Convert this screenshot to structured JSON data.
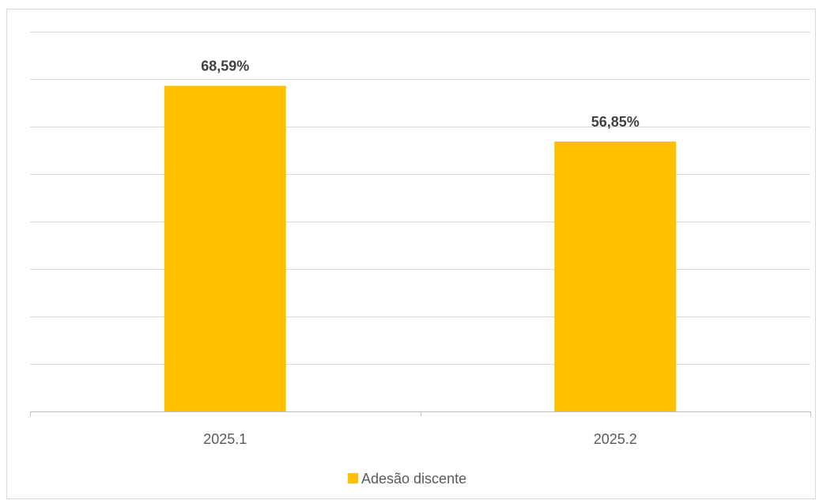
{
  "chart_data": {
    "type": "bar",
    "categories": [
      "2025.1",
      "2025.2"
    ],
    "series": [
      {
        "name": "Adesão discente",
        "values": [
          68.59,
          56.85
        ],
        "labels": [
          "68,59%",
          "56,85%"
        ],
        "color": "#FFC000"
      }
    ],
    "title": "",
    "xlabel": "",
    "ylabel": "",
    "ylim": [
      0,
      80
    ],
    "grid": true,
    "legend": "bottom-center"
  }
}
